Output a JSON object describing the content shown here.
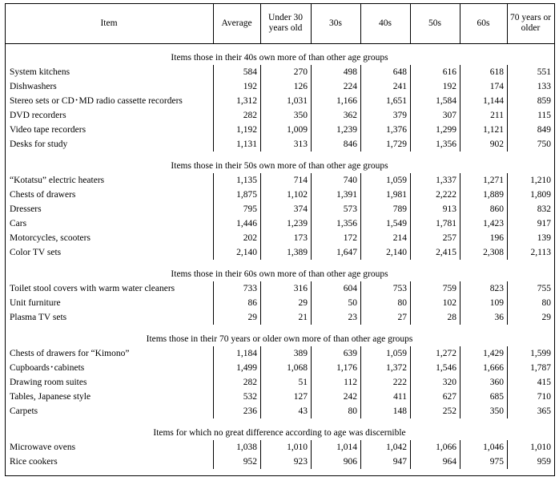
{
  "header": [
    "Item",
    "Average",
    "Under 30 years old",
    "30s",
    "40s",
    "50s",
    "60s",
    "70 years or older"
  ],
  "sections": [
    {
      "title": "Items those in their 40s own more of than other age groups",
      "rows": [
        [
          "System kitchens",
          "584",
          "270",
          "498",
          "648",
          "616",
          "618",
          "551"
        ],
        [
          "Dishwashers",
          "192",
          "126",
          "224",
          "241",
          "192",
          "174",
          "133"
        ],
        [
          "Stereo sets or CD･MD radio cassette recorders",
          "1,312",
          "1,031",
          "1,166",
          "1,651",
          "1,584",
          "1,144",
          "859"
        ],
        [
          "DVD recorders",
          "282",
          "350",
          "362",
          "379",
          "307",
          "211",
          "115"
        ],
        [
          "Video tape recorders",
          "1,192",
          "1,009",
          "1,239",
          "1,376",
          "1,299",
          "1,121",
          "849"
        ],
        [
          "Desks for study",
          "1,131",
          "313",
          "846",
          "1,729",
          "1,356",
          "902",
          "750"
        ]
      ]
    },
    {
      "title": "Items those in their 50s own more of than other age groups",
      "rows": [
        [
          "“Kotatsu” electric heaters",
          "1,135",
          "714",
          "740",
          "1,059",
          "1,337",
          "1,271",
          "1,210"
        ],
        [
          "Chests of drawers",
          "1,875",
          "1,102",
          "1,391",
          "1,981",
          "2,222",
          "1,889",
          "1,809"
        ],
        [
          "Dressers",
          "795",
          "374",
          "573",
          "789",
          "913",
          "860",
          "832"
        ],
        [
          "Cars",
          "1,446",
          "1,239",
          "1,356",
          "1,549",
          "1,781",
          "1,423",
          "917"
        ],
        [
          "Motorcycles, scooters",
          "202",
          "173",
          "172",
          "214",
          "257",
          "196",
          "139"
        ],
        [
          "Color TV sets",
          "2,140",
          "1,389",
          "1,647",
          "2,140",
          "2,415",
          "2,308",
          "2,113"
        ]
      ]
    },
    {
      "title": "Items those in their 60s own more of than other age groups",
      "rows": [
        [
          "Toilet stool covers with warm water cleaners",
          "733",
          "316",
          "604",
          "753",
          "759",
          "823",
          "755"
        ],
        [
          "Unit furniture",
          "86",
          "29",
          "50",
          "80",
          "102",
          "109",
          "80"
        ],
        [
          "Plasma TV sets",
          "29",
          "21",
          "23",
          "27",
          "28",
          "36",
          "29"
        ]
      ]
    },
    {
      "title": "Items those in their 70 years or older own more of than other age groups",
      "rows": [
        [
          "Chests of drawers for “Kimono”",
          "1,184",
          "389",
          "639",
          "1,059",
          "1,272",
          "1,429",
          "1,599"
        ],
        [
          "Cupboards･cabinets",
          "1,499",
          "1,068",
          "1,176",
          "1,372",
          "1,546",
          "1,666",
          "1,787"
        ],
        [
          "Drawing room suites",
          "282",
          "51",
          "112",
          "222",
          "320",
          "360",
          "415"
        ],
        [
          "Tables, Japanese style",
          "532",
          "127",
          "242",
          "411",
          "627",
          "685",
          "710"
        ],
        [
          "Carpets",
          "236",
          "43",
          "80",
          "148",
          "252",
          "350",
          "365"
        ]
      ]
    },
    {
      "title": "Items for which no great difference according to age was discernible",
      "rows": [
        [
          "Microwave ovens",
          "1,038",
          "1,010",
          "1,014",
          "1,042",
          "1,066",
          "1,046",
          "1,010"
        ],
        [
          "Rice cookers",
          "952",
          "923",
          "906",
          "947",
          "964",
          "975",
          "959"
        ]
      ]
    }
  ]
}
